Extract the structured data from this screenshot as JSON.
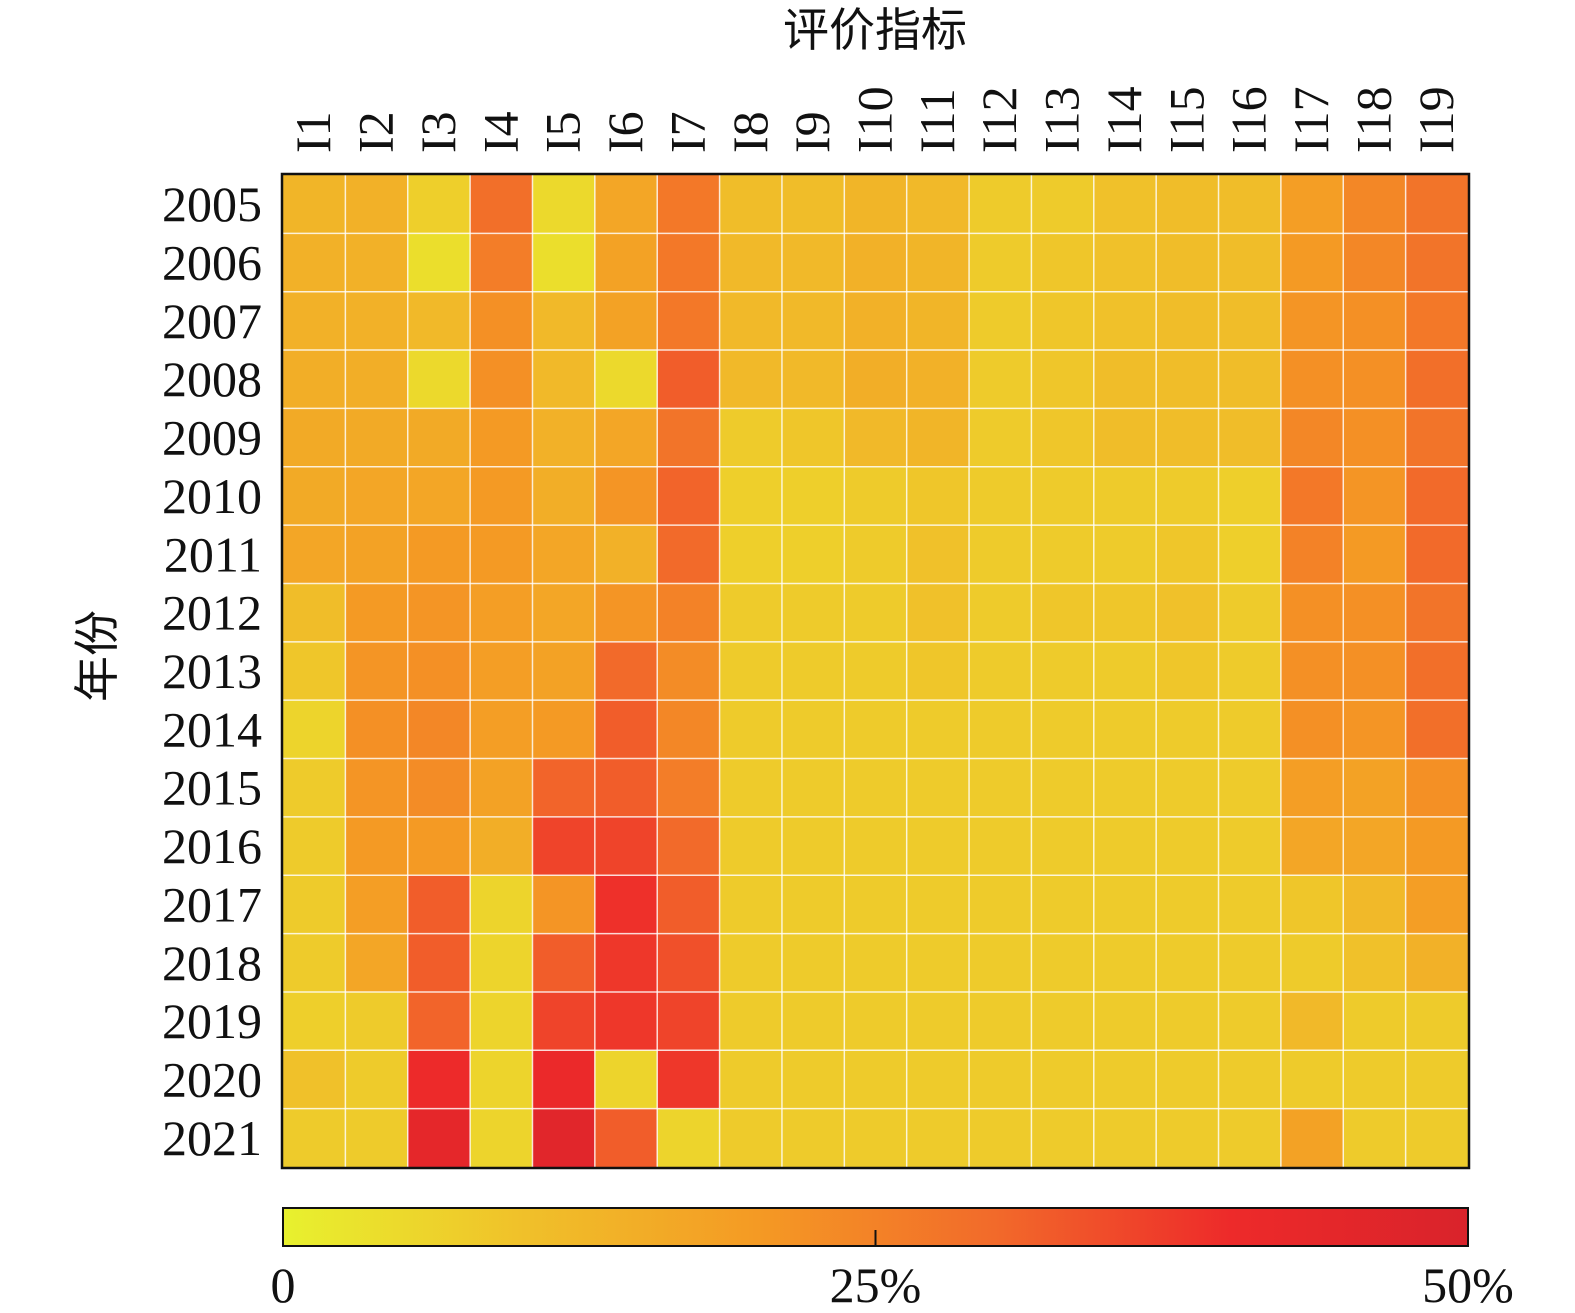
{
  "chart_data": {
    "type": "heatmap",
    "title": "",
    "xlabel": "评价指标",
    "ylabel": "年份",
    "x_categories": [
      "I1",
      "I2",
      "I3",
      "I4",
      "I5",
      "I6",
      "I7",
      "I8",
      "I9",
      "I10",
      "I11",
      "I12",
      "I13",
      "I14",
      "I15",
      "I16",
      "I17",
      "I18",
      "I19"
    ],
    "y_categories": [
      "2005",
      "2006",
      "2007",
      "2008",
      "2009",
      "2010",
      "2011",
      "2012",
      "2013",
      "2014",
      "2015",
      "2016",
      "2017",
      "2018",
      "2019",
      "2020",
      "2021"
    ],
    "value_range": [
      0,
      50
    ],
    "value_unit": "%",
    "colorbar": {
      "ticks": [
        0,
        25,
        50
      ],
      "tick_labels": [
        "0",
        "25%",
        "50%"
      ],
      "colors": [
        "#e8f12e",
        "#f0c12a",
        "#f49a24",
        "#f26a2a",
        "#ed2a2a",
        "#d9232b"
      ],
      "position": "bottom"
    },
    "values": [
      [
        13,
        14,
        7,
        29,
        5,
        17,
        27,
        11,
        11,
        13,
        12,
        8,
        8,
        10,
        11,
        11,
        19,
        24,
        28
      ],
      [
        14,
        14,
        4,
        26,
        4,
        18,
        27,
        12,
        12,
        14,
        13,
        8,
        9,
        10,
        11,
        11,
        20,
        24,
        28
      ],
      [
        14,
        14,
        12,
        22,
        12,
        18,
        27,
        12,
        12,
        14,
        13,
        8,
        9,
        10,
        11,
        11,
        21,
        22,
        27
      ],
      [
        15,
        15,
        5,
        22,
        12,
        5,
        32,
        12,
        12,
        15,
        14,
        8,
        9,
        11,
        11,
        11,
        22,
        22,
        29
      ],
      [
        16,
        16,
        16,
        20,
        14,
        17,
        28,
        8,
        9,
        12,
        13,
        8,
        9,
        11,
        11,
        11,
        24,
        22,
        28
      ],
      [
        16,
        17,
        17,
        20,
        15,
        21,
        31,
        7,
        7,
        8,
        9,
        8,
        8,
        8,
        8,
        7,
        27,
        21,
        30
      ],
      [
        17,
        18,
        20,
        20,
        17,
        14,
        30,
        7,
        7,
        8,
        10,
        8,
        8,
        8,
        9,
        7,
        25,
        20,
        30
      ],
      [
        11,
        20,
        21,
        19,
        17,
        21,
        25,
        8,
        8,
        8,
        10,
        8,
        9,
        9,
        10,
        8,
        22,
        22,
        28
      ],
      [
        9,
        21,
        22,
        19,
        18,
        30,
        23,
        8,
        8,
        8,
        9,
        8,
        8,
        8,
        9,
        8,
        22,
        22,
        29
      ],
      [
        6,
        22,
        24,
        19,
        20,
        32,
        24,
        8,
        8,
        8,
        8,
        8,
        8,
        8,
        8,
        8,
        22,
        21,
        29
      ],
      [
        8,
        21,
        23,
        18,
        31,
        32,
        26,
        8,
        8,
        8,
        8,
        8,
        8,
        8,
        8,
        8,
        19,
        18,
        22
      ],
      [
        8,
        20,
        20,
        15,
        36,
        36,
        30,
        8,
        8,
        8,
        8,
        8,
        8,
        8,
        8,
        8,
        17,
        17,
        20
      ],
      [
        8,
        19,
        32,
        6,
        21,
        39,
        32,
        8,
        8,
        8,
        8,
        8,
        8,
        8,
        8,
        8,
        9,
        12,
        19
      ],
      [
        8,
        17,
        32,
        6,
        32,
        38,
        34,
        8,
        8,
        8,
        8,
        8,
        8,
        8,
        8,
        8,
        8,
        10,
        14
      ],
      [
        7,
        8,
        31,
        6,
        36,
        38,
        36,
        8,
        8,
        8,
        8,
        8,
        8,
        8,
        8,
        8,
        12,
        8,
        8
      ],
      [
        10,
        8,
        40,
        6,
        41,
        6,
        38,
        8,
        8,
        8,
        8,
        8,
        8,
        8,
        8,
        8,
        8,
        8,
        8
      ],
      [
        8,
        8,
        44,
        6,
        46,
        32,
        6,
        8,
        8,
        8,
        8,
        8,
        8,
        8,
        8,
        8,
        18,
        8,
        8
      ]
    ]
  }
}
